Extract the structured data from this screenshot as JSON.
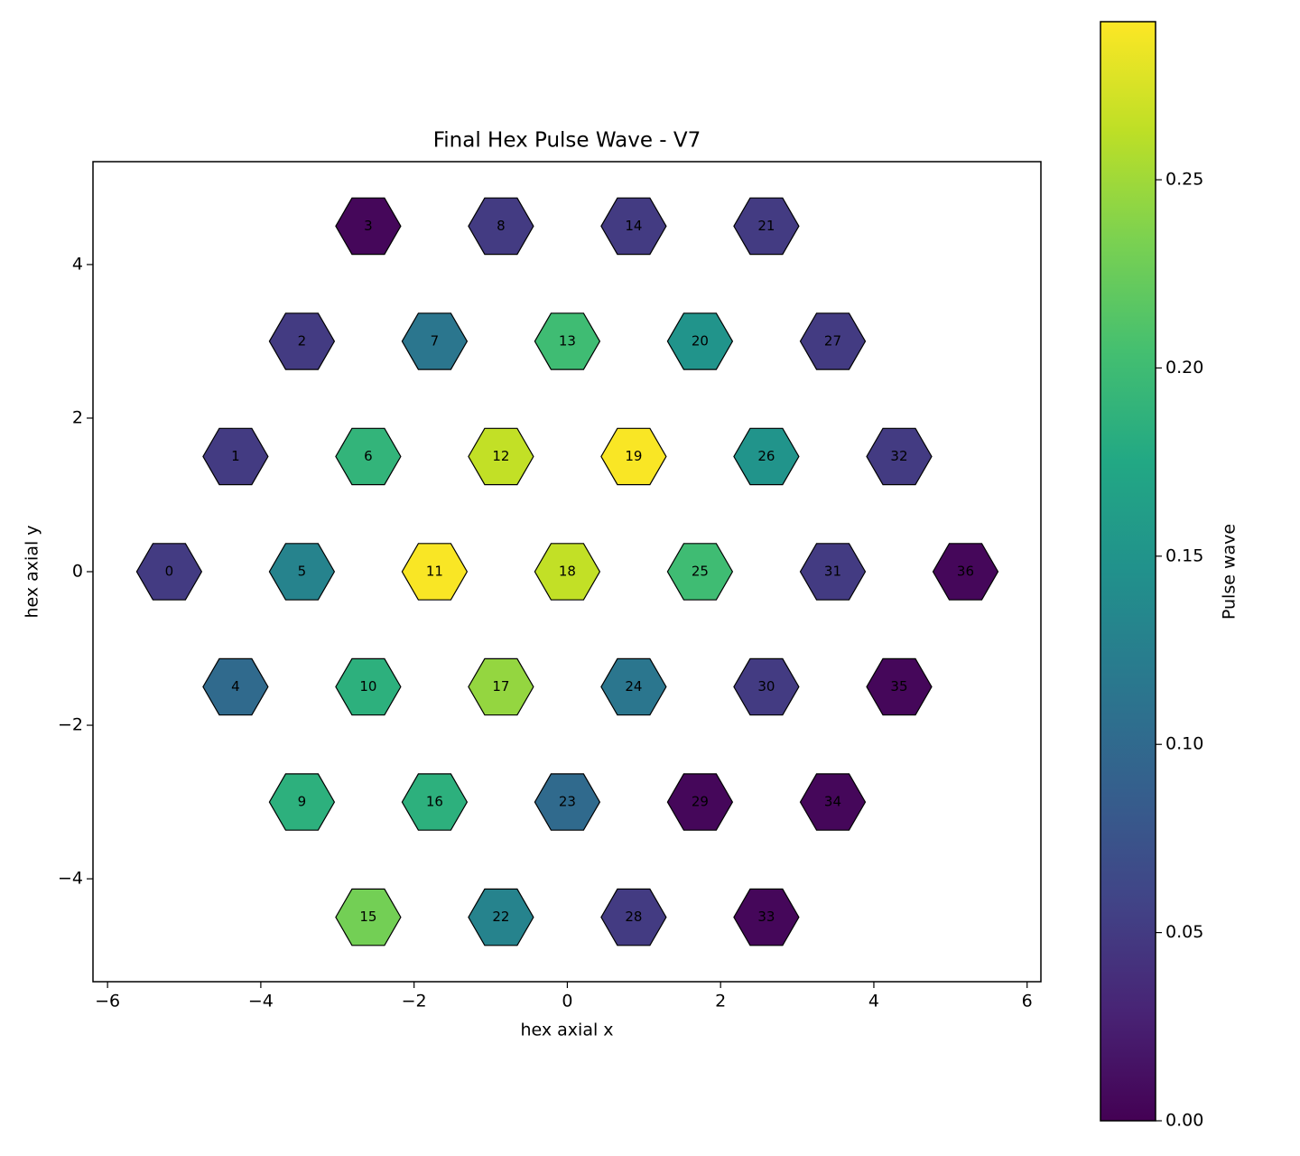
{
  "chart_data": {
    "type": "hex",
    "title": "Final Hex Pulse Wave - V7",
    "x_label": "hex axial x",
    "y_label": "hex axial y",
    "colorbar_label": "Pulse wave",
    "colormap": "viridis",
    "labels": [
      0,
      1,
      2,
      3,
      4,
      5,
      6,
      7,
      8,
      9,
      10,
      11,
      12,
      13,
      14,
      15,
      16,
      17,
      18,
      19,
      20,
      21,
      22,
      23,
      24,
      25,
      26,
      27,
      28,
      29,
      30,
      31,
      32,
      33,
      34,
      35,
      36
    ],
    "x": [
      -5.196,
      -4.33,
      -3.464,
      -2.598,
      -4.33,
      -3.464,
      -2.598,
      -1.732,
      -0.866,
      -3.464,
      -2.598,
      -1.732,
      -0.866,
      0,
      0.866,
      -2.598,
      -1.732,
      -0.866,
      0,
      0.866,
      1.732,
      2.598,
      -0.866,
      0,
      0.866,
      1.732,
      2.598,
      3.464,
      0.866,
      1.732,
      2.598,
      3.464,
      4.33,
      2.598,
      3.464,
      4.33,
      5.196
    ],
    "y": [
      0,
      1.5,
      3,
      4.5,
      -1.5,
      0,
      1.5,
      3,
      4.5,
      -3,
      -1.5,
      0,
      1.5,
      3,
      4.5,
      -4.5,
      -3,
      -1.5,
      0,
      1.5,
      3,
      4.5,
      -4.5,
      -3,
      -1.5,
      0,
      1.5,
      3,
      -4.5,
      -3,
      -1.5,
      0,
      1.5,
      -4.5,
      -3,
      -1.5,
      0
    ],
    "values": [
      0.05,
      0.05,
      0.05,
      0.005,
      0.1,
      0.13,
      0.19,
      0.115,
      0.05,
      0.185,
      0.185,
      0.29,
      0.265,
      0.2,
      0.05,
      0.23,
      0.185,
      0.245,
      0.265,
      0.29,
      0.15,
      0.05,
      0.13,
      0.1,
      0.115,
      0.2,
      0.15,
      0.05,
      0.05,
      0.005,
      0.05,
      0.05,
      0.05,
      0.005,
      0.005,
      0.005,
      0.005
    ],
    "xlim": [
      -6.19,
      6.18
    ],
    "ylim": [
      -5.34,
      5.34
    ],
    "clim": [
      0,
      0.292
    ],
    "xticks": [
      {
        "value": -6,
        "label": "−6"
      },
      {
        "value": -4,
        "label": "−4"
      },
      {
        "value": -2,
        "label": "−2"
      },
      0,
      2,
      4,
      6
    ],
    "yticks": [
      {
        "value": -4,
        "label": "−4"
      },
      {
        "value": -2,
        "label": "−2"
      },
      0,
      2,
      4
    ],
    "cticks": [
      {
        "value": 0,
        "label": "0.00"
      },
      0.05,
      {
        "value": 0.1,
        "label": "0.10"
      },
      0.15,
      {
        "value": 0.2,
        "label": "0.20"
      },
      0.25
    ]
  }
}
